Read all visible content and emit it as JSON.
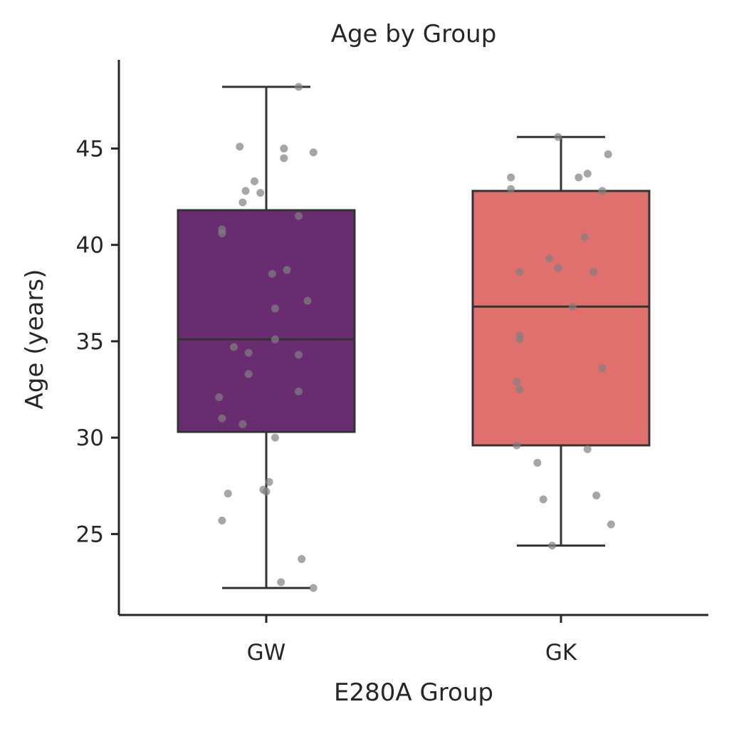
{
  "chart_data": {
    "type": "box",
    "title": "Age by Group",
    "xlabel": "E280A Group",
    "ylabel": "Age (years)",
    "categories": [
      "GW",
      "GK"
    ],
    "ylim": [
      20.8,
      49.6
    ],
    "yticks": [
      25,
      30,
      35,
      40,
      45
    ],
    "grid": false,
    "boxes": [
      {
        "name": "GW",
        "color": "#6a2c70",
        "whisker_low": 22.2,
        "q1": 30.3,
        "median": 35.1,
        "q3": 41.8,
        "whisker_high": 48.2
      },
      {
        "name": "GK",
        "color": "#df706e",
        "whisker_low": 24.4,
        "q1": 29.6,
        "median": 36.8,
        "q3": 42.8,
        "whisker_high": 45.6
      }
    ],
    "points": [
      {
        "group": "GW",
        "offset": 0.11,
        "y": 48.2
      },
      {
        "group": "GW",
        "offset": -0.09,
        "y": 45.1
      },
      {
        "group": "GW",
        "offset": 0.06,
        "y": 45.0
      },
      {
        "group": "GW",
        "offset": 0.16,
        "y": 44.8
      },
      {
        "group": "GW",
        "offset": 0.06,
        "y": 44.5
      },
      {
        "group": "GW",
        "offset": -0.04,
        "y": 43.3
      },
      {
        "group": "GW",
        "offset": -0.07,
        "y": 42.8
      },
      {
        "group": "GW",
        "offset": -0.02,
        "y": 42.7
      },
      {
        "group": "GW",
        "offset": -0.08,
        "y": 42.2
      },
      {
        "group": "GW",
        "offset": 0.11,
        "y": 41.5
      },
      {
        "group": "GW",
        "offset": -0.15,
        "y": 40.8
      },
      {
        "group": "GW",
        "offset": -0.15,
        "y": 40.6
      },
      {
        "group": "GW",
        "offset": 0.07,
        "y": 38.7
      },
      {
        "group": "GW",
        "offset": 0.02,
        "y": 38.5
      },
      {
        "group": "GW",
        "offset": 0.14,
        "y": 37.1
      },
      {
        "group": "GW",
        "offset": 0.03,
        "y": 36.7
      },
      {
        "group": "GW",
        "offset": 0.03,
        "y": 35.1
      },
      {
        "group": "GW",
        "offset": -0.11,
        "y": 34.7
      },
      {
        "group": "GW",
        "offset": -0.06,
        "y": 34.4
      },
      {
        "group": "GW",
        "offset": 0.11,
        "y": 34.3
      },
      {
        "group": "GW",
        "offset": -0.06,
        "y": 33.3
      },
      {
        "group": "GW",
        "offset": 0.11,
        "y": 32.4
      },
      {
        "group": "GW",
        "offset": -0.16,
        "y": 32.1
      },
      {
        "group": "GW",
        "offset": -0.15,
        "y": 31.0
      },
      {
        "group": "GW",
        "offset": -0.08,
        "y": 30.7
      },
      {
        "group": "GW",
        "offset": 0.03,
        "y": 30.0
      },
      {
        "group": "GW",
        "offset": 0.01,
        "y": 27.7
      },
      {
        "group": "GW",
        "offset": -0.13,
        "y": 27.1
      },
      {
        "group": "GW",
        "offset": -0.01,
        "y": 27.3
      },
      {
        "group": "GW",
        "offset": 0.0,
        "y": 27.2
      },
      {
        "group": "GW",
        "offset": -0.15,
        "y": 25.7
      },
      {
        "group": "GW",
        "offset": 0.12,
        "y": 23.7
      },
      {
        "group": "GW",
        "offset": 0.05,
        "y": 22.5
      },
      {
        "group": "GW",
        "offset": 0.16,
        "y": 22.2
      },
      {
        "group": "GK",
        "offset": -0.01,
        "y": 45.6
      },
      {
        "group": "GK",
        "offset": 0.16,
        "y": 44.7
      },
      {
        "group": "GK",
        "offset": 0.09,
        "y": 43.7
      },
      {
        "group": "GK",
        "offset": -0.17,
        "y": 43.5
      },
      {
        "group": "GK",
        "offset": 0.06,
        "y": 43.5
      },
      {
        "group": "GK",
        "offset": -0.17,
        "y": 42.9
      },
      {
        "group": "GK",
        "offset": 0.14,
        "y": 42.8
      },
      {
        "group": "GK",
        "offset": 0.08,
        "y": 40.4
      },
      {
        "group": "GK",
        "offset": -0.04,
        "y": 39.3
      },
      {
        "group": "GK",
        "offset": -0.01,
        "y": 38.8
      },
      {
        "group": "GK",
        "offset": -0.14,
        "y": 38.6
      },
      {
        "group": "GK",
        "offset": 0.11,
        "y": 38.6
      },
      {
        "group": "GK",
        "offset": 0.04,
        "y": 36.8
      },
      {
        "group": "GK",
        "offset": -0.14,
        "y": 35.3
      },
      {
        "group": "GK",
        "offset": -0.14,
        "y": 35.1
      },
      {
        "group": "GK",
        "offset": 0.14,
        "y": 33.6
      },
      {
        "group": "GK",
        "offset": -0.15,
        "y": 32.9
      },
      {
        "group": "GK",
        "offset": -0.14,
        "y": 32.5
      },
      {
        "group": "GK",
        "offset": -0.15,
        "y": 29.6
      },
      {
        "group": "GK",
        "offset": 0.09,
        "y": 29.4
      },
      {
        "group": "GK",
        "offset": -0.08,
        "y": 28.7
      },
      {
        "group": "GK",
        "offset": 0.12,
        "y": 27.0
      },
      {
        "group": "GK",
        "offset": -0.06,
        "y": 26.8
      },
      {
        "group": "GK",
        "offset": 0.17,
        "y": 25.5
      },
      {
        "group": "GK",
        "offset": -0.03,
        "y": 24.4
      }
    ]
  }
}
